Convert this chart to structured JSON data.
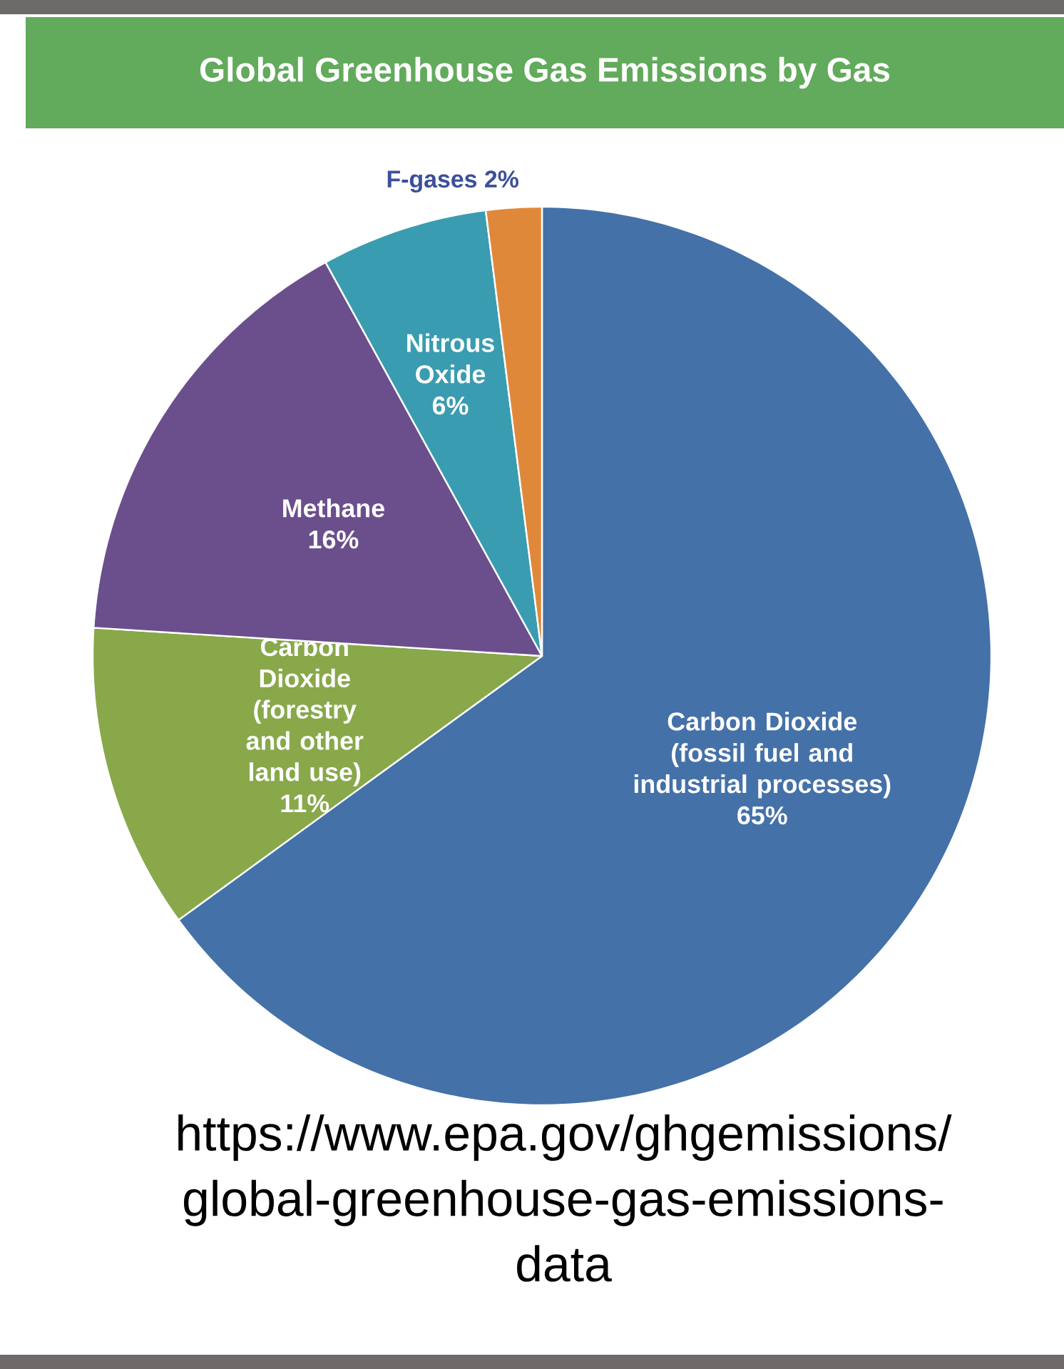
{
  "chart_data": {
    "type": "pie",
    "title": "Global Greenhouse Gas Emissions by Gas",
    "categories": [
      "Carbon Dioxide (fossil fuel and industrial processes)",
      "Carbon Dioxide (forestry and other land use)",
      "Methane",
      "Nitrous Oxide",
      "F-gases"
    ],
    "values": [
      65,
      11,
      16,
      6,
      2
    ],
    "colors": [
      "#4471a8",
      "#88a84a",
      "#6b4f8c",
      "#3a9cb0",
      "#e0883a"
    ],
    "value_labels": [
      "65%",
      "11%",
      "16%",
      "6%",
      "2%"
    ],
    "annotations": [
      "https://www.epa.gov/ghgemissions/",
      "global-greenhouse-gas-emissions-",
      "data"
    ]
  }
}
